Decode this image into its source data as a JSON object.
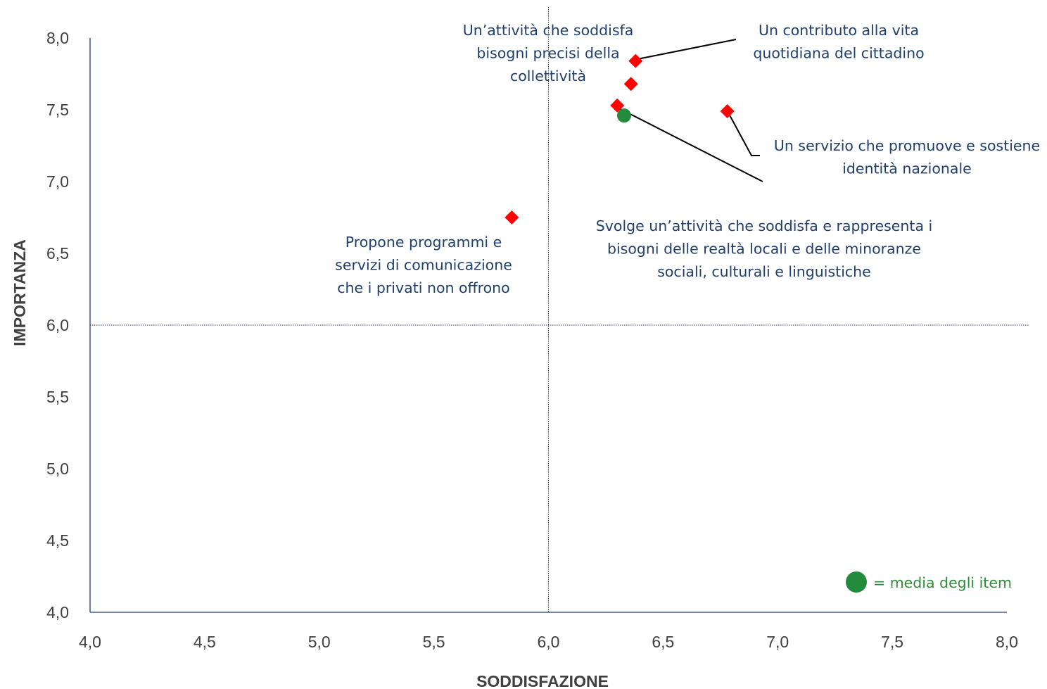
{
  "chart_data": {
    "type": "scatter",
    "title": "",
    "xlabel": "SODDISFAZIONE",
    "ylabel": "IMPORTANZA",
    "xlim": [
      4.0,
      8.0
    ],
    "ylim": [
      4.0,
      8.0
    ],
    "x_ticks": [
      "4,0",
      "4,5",
      "5,0",
      "5,5",
      "6,0",
      "6,5",
      "7,0",
      "7,5",
      "8,0"
    ],
    "y_ticks": [
      "4,0",
      "4,5",
      "5,0",
      "5,5",
      "6,0",
      "6,5",
      "7,0",
      "7,5",
      "8,0"
    ],
    "reference_lines": {
      "x": 6.0,
      "y": 6.0
    },
    "points": [
      {
        "x": 6.38,
        "y": 7.84
      },
      {
        "x": 6.36,
        "y": 7.68
      },
      {
        "x": 6.3,
        "y": 7.53
      },
      {
        "x": 6.78,
        "y": 7.49
      },
      {
        "x": 5.84,
        "y": 6.75
      }
    ],
    "mean_point": {
      "x": 6.33,
      "y": 7.46
    },
    "annotations": [
      {
        "lines": [
          "Un’attività che soddisfa",
          "bisogni precisi della",
          "collettività"
        ]
      },
      {
        "lines": [
          "Un contributo alla vita",
          "quotidiana del cittadino"
        ]
      },
      {
        "lines": [
          "Un servizio che promuove e sostiene",
          "identità nazionale"
        ]
      },
      {
        "lines": [
          "Svolge un’attività che soddisfa e rappresenta i",
          "bisogni delle realtà locali e delle minoranze",
          "sociali, culturali e linguistiche"
        ]
      },
      {
        "lines": [
          "Propone programmi e",
          "servizi di comunicazione",
          "che i privati non offrono"
        ]
      }
    ],
    "legend": {
      "label": "= media degli item",
      "placement": "bottom-right"
    },
    "colors": {
      "point": "#ff0000",
      "mean": "#228b3c",
      "axis": "#1f3f6e",
      "annotation_text": "#1f3f6e",
      "legend_text": "#2e8b3a",
      "ticks": "#404040"
    }
  }
}
